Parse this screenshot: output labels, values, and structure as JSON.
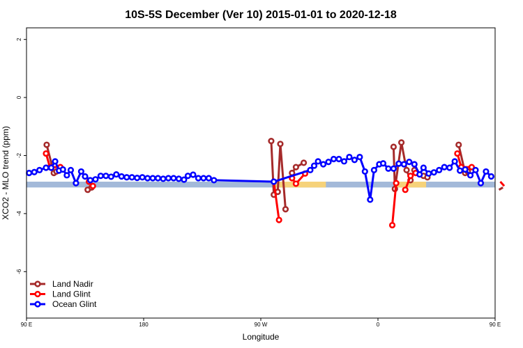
{
  "chart_data": {
    "type": "line",
    "title": "10S-5S December (Ver 10)   2015-01-01 to 2020-12-18",
    "xlabel": "Longitude",
    "ylabel": "XCO2 - MLO trend (ppm)",
    "xlim": [
      90,
      450
    ],
    "ylim": [
      -7.6,
      2.4
    ],
    "yticks": [
      {
        "value": 2,
        "label": "2"
      },
      {
        "value": 0,
        "label": "0"
      },
      {
        "value": -2,
        "label": "-2"
      },
      {
        "value": -4,
        "label": "-4"
      },
      {
        "value": -6,
        "label": "-6"
      }
    ],
    "xticks": [
      {
        "value": 90,
        "label": "90 E"
      },
      {
        "value": 180,
        "label": "180"
      },
      {
        "value": 270,
        "label": "90 W"
      },
      {
        "value": 360,
        "label": "0"
      },
      {
        "value": 450,
        "label": "90 E"
      }
    ],
    "legend_position": "bottom-left",
    "land_band": {
      "y_range": [
        -3.1,
        -2.9
      ],
      "ocean_color": "#a3b9d9",
      "land_color": "#f6d27a",
      "land_segments": [
        [
          280,
          320
        ],
        [
          373,
          397
        ]
      ]
    },
    "series": [
      {
        "name": "Land Nadir",
        "color": "#a52a2a",
        "segments": [
          [
            [
              105.5,
              -1.63
            ],
            [
              111,
              -2.6
            ],
            [
              113,
              -2.55
            ]
          ],
          [
            [
              137,
              -3.18
            ],
            [
              140,
              -3.1
            ]
          ],
          [
            [
              278,
              -1.5
            ],
            [
              280,
              -3.35
            ],
            [
              283,
              -3.25
            ],
            [
              285,
              -1.6
            ],
            [
              289,
              -3.85
            ]
          ],
          [
            [
              294,
              -2.6
            ],
            [
              297,
              -2.4
            ],
            [
              303,
              -2.25
            ]
          ],
          [
            [
              372,
              -1.7
            ],
            [
              373,
              -3.15
            ],
            [
              378,
              -1.55
            ],
            [
              382,
              -2.5
            ],
            [
              385,
              -2.85
            ],
            [
              388,
              -2.5
            ]
          ],
          [
            [
              395,
              -2.7
            ],
            [
              398,
              -2.75
            ]
          ],
          [
            [
              422,
              -1.63
            ],
            [
              427,
              -2.6
            ],
            [
              429,
              -2.55
            ]
          ],
          [
            [
              453,
              -3.18
            ],
            [
              456,
              -3.1
            ]
          ]
        ]
      },
      {
        "name": "Land Glint",
        "color": "#ff0000",
        "segments": [
          [
            [
              105,
              -1.93
            ],
            [
              108,
              -2.4
            ],
            [
              116,
              -2.4
            ]
          ],
          [
            [
              138,
              -2.9
            ],
            [
              141,
              -3.05
            ]
          ],
          [
            [
              280,
              -2.9
            ],
            [
              284,
              -4.22
            ]
          ],
          [
            [
              294,
              -2.78
            ],
            [
              297,
              -2.97
            ],
            [
              304,
              -2.62
            ]
          ],
          [
            [
              371,
              -4.4
            ],
            [
              374,
              -2.95
            ]
          ],
          [
            [
              381,
              -3.18
            ],
            [
              385,
              -2.7
            ],
            [
              389,
              -2.6
            ]
          ],
          [
            [
              421,
              -1.93
            ],
            [
              424,
              -2.4
            ],
            [
              432,
              -2.4
            ]
          ],
          [
            [
              454,
              -2.9
            ],
            [
              457,
              -3.05
            ]
          ]
        ]
      },
      {
        "name": "Ocean Glint",
        "color": "#0000ff",
        "points": [
          [
            92,
            -2.6
          ],
          [
            96,
            -2.57
          ],
          [
            100,
            -2.5
          ],
          [
            105,
            -2.42
          ],
          [
            109,
            -2.42
          ],
          [
            112,
            -2.2
          ],
          [
            115,
            -2.52
          ],
          [
            118,
            -2.48
          ],
          [
            121,
            -2.68
          ],
          [
            124,
            -2.5
          ],
          [
            128,
            -2.95
          ],
          [
            132,
            -2.55
          ],
          [
            135,
            -2.72
          ],
          [
            139,
            -2.85
          ],
          [
            143,
            -2.82
          ],
          [
            147,
            -2.7
          ],
          [
            151,
            -2.7
          ],
          [
            155,
            -2.73
          ],
          [
            159,
            -2.65
          ],
          [
            163,
            -2.72
          ],
          [
            167,
            -2.75
          ],
          [
            171,
            -2.75
          ],
          [
            175,
            -2.77
          ],
          [
            179,
            -2.75
          ],
          [
            183,
            -2.78
          ],
          [
            187,
            -2.78
          ],
          [
            191,
            -2.78
          ],
          [
            195,
            -2.8
          ],
          [
            199,
            -2.78
          ],
          [
            203,
            -2.78
          ],
          [
            207,
            -2.8
          ],
          [
            211,
            -2.83
          ],
          [
            214,
            -2.7
          ],
          [
            218,
            -2.66
          ],
          [
            222,
            -2.78
          ],
          [
            226,
            -2.78
          ],
          [
            230,
            -2.78
          ],
          [
            234,
            -2.85
          ],
          [
            280,
            -2.9
          ],
          [
            308,
            -2.5
          ],
          [
            311,
            -2.35
          ],
          [
            314,
            -2.2
          ],
          [
            318,
            -2.3
          ],
          [
            322,
            -2.22
          ],
          [
            326,
            -2.12
          ],
          [
            330,
            -2.12
          ],
          [
            334,
            -2.2
          ],
          [
            338,
            -2.05
          ],
          [
            342,
            -2.15
          ],
          [
            346,
            -2.05
          ],
          [
            350,
            -2.55
          ],
          [
            354,
            -3.52
          ],
          [
            357,
            -2.5
          ],
          [
            361,
            -2.3
          ],
          [
            364,
            -2.27
          ],
          [
            368,
            -2.45
          ],
          [
            372,
            -2.45
          ],
          [
            376,
            -2.28
          ],
          [
            380,
            -2.3
          ],
          [
            384,
            -2.22
          ],
          [
            388,
            -2.3
          ],
          [
            392,
            -2.65
          ],
          [
            395,
            -2.42
          ],
          [
            399,
            -2.62
          ],
          [
            403,
            -2.58
          ],
          [
            407,
            -2.5
          ],
          [
            411,
            -2.4
          ],
          [
            415,
            -2.42
          ],
          [
            419,
            -2.2
          ],
          [
            423,
            -2.52
          ],
          [
            427,
            -2.48
          ],
          [
            431,
            -2.68
          ],
          [
            435,
            -2.5
          ],
          [
            439,
            -2.95
          ],
          [
            443,
            -2.55
          ],
          [
            447,
            -2.72
          ]
        ]
      }
    ]
  }
}
